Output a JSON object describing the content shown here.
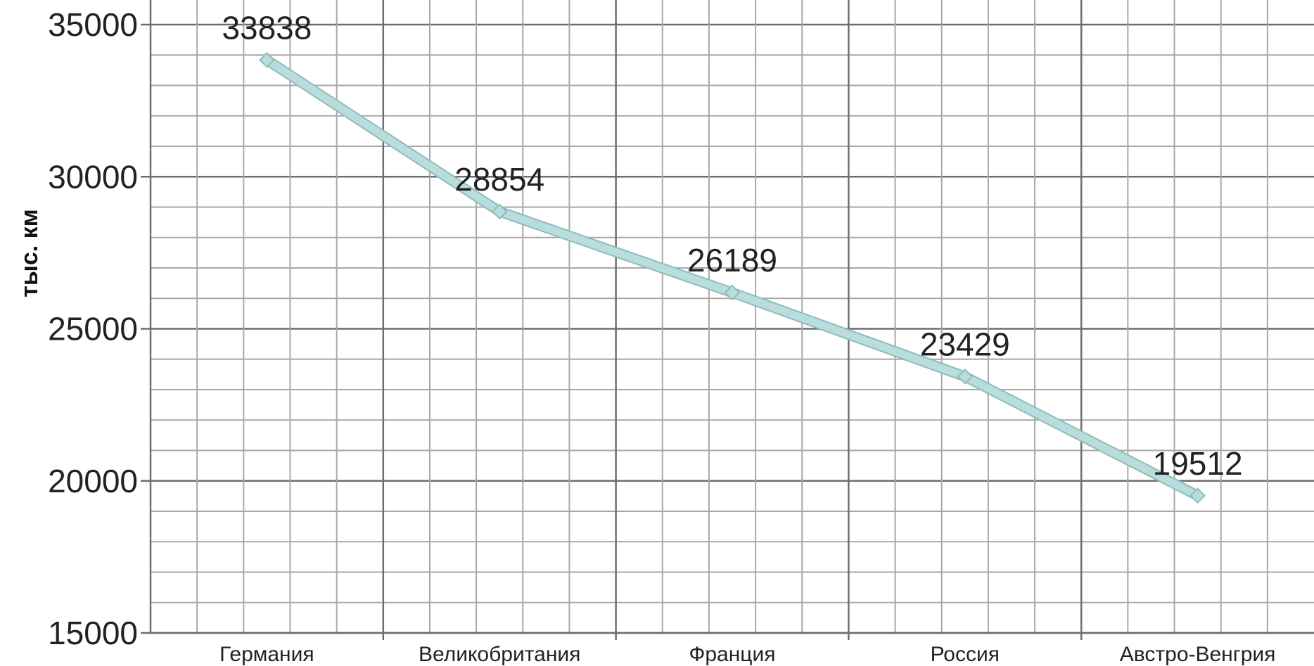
{
  "chart_data": {
    "type": "line",
    "title": "",
    "xlabel": "",
    "ylabel": "тыс. км",
    "categories": [
      "Германия",
      "Великобритания",
      "Франция",
      "Россия",
      "Австро-Венгрия"
    ],
    "series": [
      {
        "values": [
          33838,
          28854,
          26189,
          23429,
          19512
        ]
      }
    ],
    "data_labels": [
      "33838",
      "28854",
      "26189",
      "23429",
      "19512"
    ],
    "ylim": [
      15000,
      35000
    ],
    "yticks": [
      15000,
      20000,
      25000,
      30000,
      35000
    ],
    "ytick_labels": [
      "15000",
      "20000",
      "25000",
      "30000",
      "35000"
    ],
    "y_minor_step": 1000,
    "x_minor_divisions": 5,
    "grid": true,
    "legend": "none",
    "colors": {
      "line": "#b9dcdc",
      "line_edge": "#8fbcbc",
      "grid_major": "#6e6e6e",
      "grid_minor": "#a8a8a8",
      "text": "#222222"
    }
  }
}
